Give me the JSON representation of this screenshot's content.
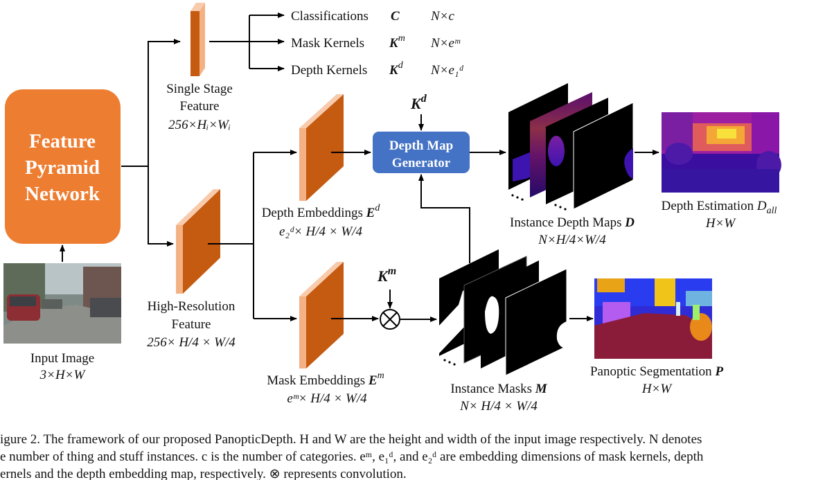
{
  "fpn": {
    "line1": "Feature",
    "line2": "Pyramid",
    "line3": "Network"
  },
  "input": {
    "label": "Input Image",
    "dims": "3×H×W"
  },
  "single_stage": {
    "line1": "Single Stage",
    "line2": "Feature",
    "dims": "256×Hᵢ×Wᵢ",
    "outputs": [
      {
        "label": "Classifications",
        "symbol": "C",
        "sup": "",
        "dims": "N×c"
      },
      {
        "label": "Mask Kernels",
        "symbol": "K",
        "sup": "m",
        "dims": "N×eᵐ"
      },
      {
        "label": "Depth Kernels",
        "symbol": "K",
        "sup": "d",
        "dims": "N×e₁ᵈ"
      }
    ]
  },
  "high_res": {
    "line1": "High-Resolution",
    "line2": "Feature",
    "dims": "256× H/4 × W/4"
  },
  "depth_embeddings": {
    "label": "Depth Embeddings",
    "symbol": "E",
    "sup": "d",
    "dims": "e₂ᵈ× H/4 × W/4"
  },
  "mask_embeddings": {
    "label": "Mask Embeddings",
    "symbol": "E",
    "sup": "m",
    "dims": "eᵐ× H/4 × W/4"
  },
  "kd_input": {
    "symbol": "K",
    "sup": "d"
  },
  "km_input": {
    "symbol": "K",
    "sup": "m"
  },
  "generator": {
    "line1": "Depth Map",
    "line2": "Generator"
  },
  "instance_depth": {
    "label": "Instance Depth Maps",
    "symbol": "D",
    "dims": "N×H/4×W/4"
  },
  "depth_estimation": {
    "label": "Depth Estimation",
    "symbol": "D",
    "sub": "all",
    "dims": "H×W"
  },
  "instance_masks": {
    "label": "Instance Masks",
    "symbol": "M",
    "dims": "N× H/4 × W/4"
  },
  "panoptic": {
    "label": "Panoptic Segmentation",
    "symbol": "P",
    "dims": "H×W"
  },
  "caption": {
    "line1": "igure 2. The framework of our proposed PanopticDepth. H and W are the height and width of the input image respectively. N denotes",
    "line2": "e number of thing and stuff instances. c is the number of categories. eᵐ, e₁ᵈ, and e₂ᵈ are embedding dimensions of mask kernels, depth",
    "line3": "ernels and the depth embedding map, respectively. ⊗ represents convolution."
  },
  "colors": {
    "fpn_fill": "#ED7D31",
    "feature_front": "#C55A11",
    "feature_side": "#F4B183",
    "generator_fill": "#4472C4"
  }
}
